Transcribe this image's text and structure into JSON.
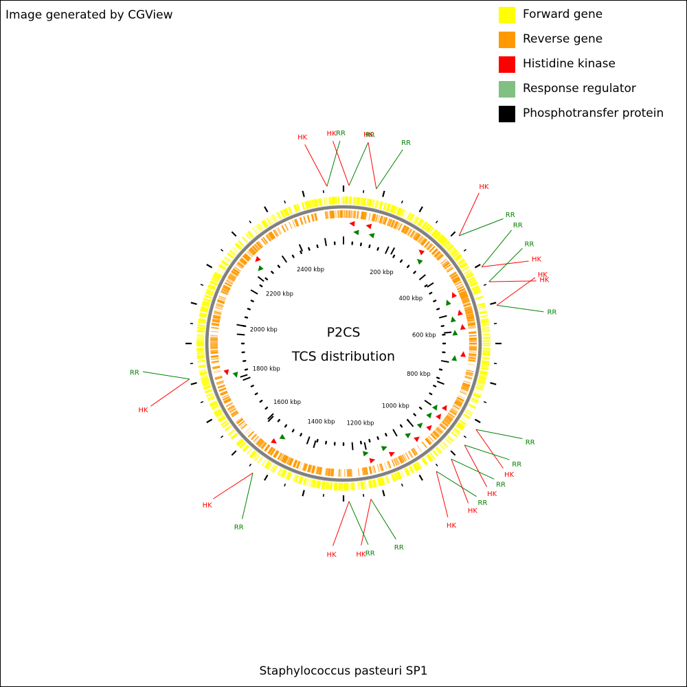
{
  "credit": "Image generated by CGView",
  "organism": "Staphylococcus pasteuri SP1",
  "center": {
    "line1": "P2CS",
    "line2": "TCS distribution"
  },
  "legend": [
    {
      "label": "Forward gene",
      "color": "#ffff00"
    },
    {
      "label": "Reverse gene",
      "color": "#ff9900"
    },
    {
      "label": "Histidine kinase",
      "color": "#ff0000"
    },
    {
      "label": "Response regulator",
      "color": "#80c080"
    },
    {
      "label": "Phosphotransfer protein",
      "color": "#000000"
    }
  ],
  "colors": {
    "hk": "#ff0000",
    "rr": "#008000",
    "backbone": "#808080"
  },
  "ruler_ticks": [
    "200 kbp",
    "400 kbp",
    "600 kbp",
    "800 kbp",
    "1000 kbp",
    "1200 kbp",
    "1400 kbp",
    "1600 kbp",
    "1800 kbp",
    "2000 kbp",
    "2200 kbp",
    "2400 kbp"
  ],
  "callouts": [
    {
      "first": "HK",
      "second": "RR"
    },
    {
      "first": "HK",
      "second": "RR"
    },
    {
      "first": "HK",
      "second": "RR"
    },
    {
      "first": "HK",
      "second": "RR"
    },
    {
      "first": "RR",
      "second": "HK"
    },
    {
      "first": "RR",
      "second": "HK"
    },
    {
      "first": "HK",
      "second": "RR"
    },
    {
      "first": "RR",
      "second": "HK"
    },
    {
      "first": "RR",
      "second": "HK"
    },
    {
      "first": "RR",
      "second": "HK"
    },
    {
      "first": "RR",
      "second": "HK"
    },
    {
      "first": "RR",
      "second": "HK"
    },
    {
      "first": "RR",
      "second": "HK"
    },
    {
      "first": "RR",
      "second": "HK"
    },
    {
      "first": "HK",
      "second": "RR"
    }
  ]
}
